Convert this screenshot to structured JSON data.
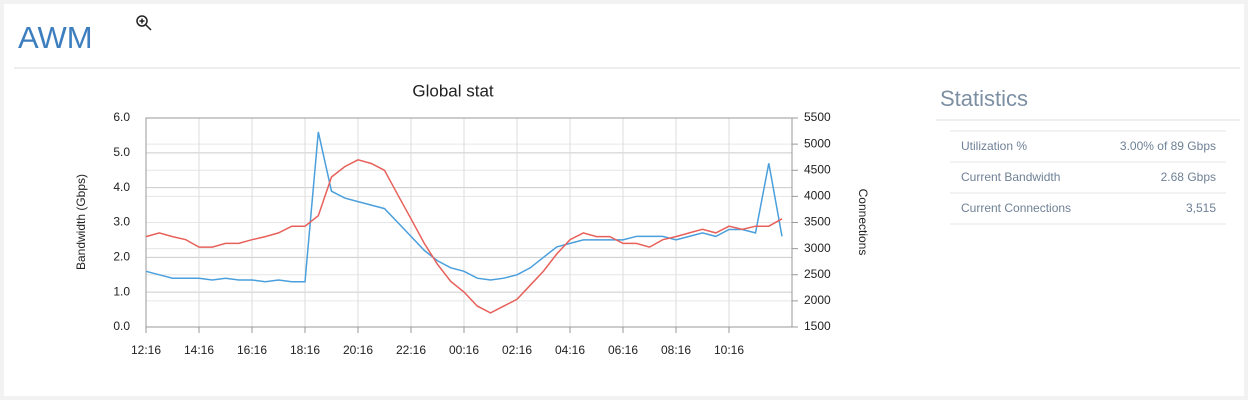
{
  "header": {
    "title": "AWM"
  },
  "chart_data": {
    "type": "line",
    "title": "Global stat",
    "y_label": "Bandwidth (Gbps)",
    "y2_label": "Connections",
    "categories": [
      "12:16",
      null,
      null,
      null,
      "14:16",
      null,
      null,
      null,
      "16:16",
      null,
      null,
      null,
      "18:16",
      null,
      null,
      null,
      "20:16",
      null,
      null,
      null,
      "22:16",
      null,
      null,
      null,
      "00:16",
      null,
      null,
      null,
      "02:16",
      null,
      null,
      null,
      "04:16",
      null,
      null,
      null,
      "06:16",
      null,
      null,
      null,
      "08:16",
      null,
      null,
      null,
      "10:16",
      null,
      null,
      null,
      null
    ],
    "series": [
      {
        "color": "#4a9fdc",
        "values": [
          1.6,
          1.5,
          1.4,
          1.4,
          1.4,
          1.35,
          1.4,
          1.35,
          1.35,
          1.3,
          1.35,
          1.3,
          1.3,
          5.6,
          3.9,
          3.7,
          3.6,
          3.5,
          3.4,
          3.0,
          2.6,
          2.2,
          1.9,
          1.7,
          1.6,
          1.4,
          1.35,
          1.4,
          1.5,
          1.7,
          2.0,
          2.3,
          2.4,
          2.5,
          2.5,
          2.5,
          2.5,
          2.6,
          2.6,
          2.6,
          2.5,
          2.6,
          2.7,
          2.6,
          2.8,
          2.8,
          2.7,
          4.7,
          2.6
        ]
      },
      {
        "color": "#e8605a",
        "axis": "y2",
        "values": [
          3230,
          3300,
          3230,
          3170,
          3030,
          3030,
          3100,
          3100,
          3170,
          3230,
          3300,
          3430,
          3430,
          3630,
          4370,
          4570,
          4700,
          4630,
          4500,
          4030,
          3570,
          3100,
          2700,
          2370,
          2170,
          1900,
          1770,
          1900,
          2030,
          2300,
          2570,
          2900,
          3170,
          3300,
          3230,
          3230,
          3100,
          3100,
          3030,
          3170,
          3230,
          3300,
          3370,
          3300,
          3430,
          3370,
          3430,
          3430,
          3570
        ]
      }
    ],
    "ylim": [
      0,
      6
    ],
    "yticks": [
      {
        "value": 0,
        "label": "0.0"
      },
      {
        "value": 1,
        "label": "1.0"
      },
      {
        "value": 2,
        "label": "2.0"
      },
      {
        "value": 3,
        "label": "3.0"
      },
      {
        "value": 4,
        "label": "4.0"
      },
      {
        "value": 5,
        "label": "5.0"
      },
      {
        "value": 6,
        "label": "6.0"
      }
    ],
    "y2lim": [
      1500,
      5500
    ],
    "y2ticks": [
      1500,
      2000,
      2500,
      3000,
      3500,
      4000,
      4500,
      5000,
      5500
    ],
    "grid": true
  },
  "statistics": {
    "title": "Statistics",
    "rows": [
      [
        "Utilization %",
        "3.00% of 89 Gbps"
      ],
      [
        "Current Bandwidth",
        "2.68 Gbps"
      ],
      [
        "Current Connections",
        "3,515"
      ]
    ]
  }
}
